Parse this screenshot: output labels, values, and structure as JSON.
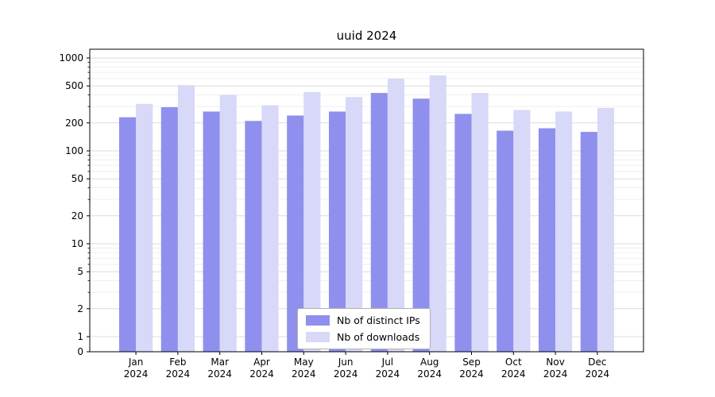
{
  "title": "uuid 2024",
  "chart_data": {
    "type": "bar",
    "title": "uuid 2024",
    "yscale": "symlog",
    "grid": "horizontal",
    "legend_position": "lower center",
    "ylim": [
      0,
      1200
    ],
    "yticks": [
      0,
      1,
      2,
      5,
      10,
      20,
      50,
      100,
      200,
      500,
      1000
    ],
    "categories": [
      [
        "Jan",
        "2024"
      ],
      [
        "Feb",
        "2024"
      ],
      [
        "Mar",
        "2024"
      ],
      [
        "Apr",
        "2024"
      ],
      [
        "May",
        "2024"
      ],
      [
        "Jun",
        "2024"
      ],
      [
        "Jul",
        "2024"
      ],
      [
        "Aug",
        "2024"
      ],
      [
        "Sep",
        "2024"
      ],
      [
        "Oct",
        "2024"
      ],
      [
        "Nov",
        "2024"
      ],
      [
        "Dec",
        "2024"
      ]
    ],
    "series": [
      {
        "name": "Nb of distinct IPs",
        "color": "#8f8fee",
        "values": [
          230,
          295,
          265,
          210,
          240,
          265,
          420,
          365,
          250,
          165,
          175,
          160
        ]
      },
      {
        "name": "Nb of downloads",
        "color": "#d8d8f8",
        "values": [
          320,
          510,
          400,
          310,
          430,
          380,
          600,
          650,
          420,
          275,
          265,
          290
        ]
      }
    ],
    "colors": {
      "axis": "#000000",
      "major_grid": "#dcdcdc",
      "minor_grid": "#efefef",
      "tick_label": "#000000"
    }
  }
}
